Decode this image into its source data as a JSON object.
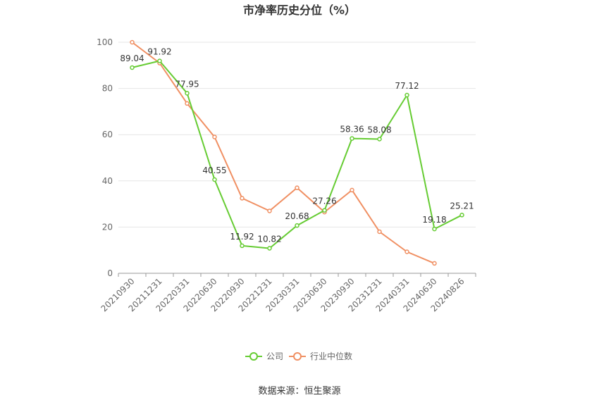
{
  "chart_data": {
    "type": "line",
    "title": "市净率历史分位（%）",
    "categories": [
      "20210930",
      "20211231",
      "20220331",
      "20220630",
      "20220930",
      "20221231",
      "20230331",
      "20230630",
      "20230930",
      "20231231",
      "20240331",
      "20240630",
      "20240826"
    ],
    "series": [
      {
        "name": "公司",
        "color": "#66cc33",
        "values": [
          89.04,
          91.92,
          77.95,
          40.55,
          11.92,
          10.82,
          20.68,
          27.26,
          58.36,
          58.08,
          77.12,
          19.18,
          25.21
        ],
        "labels": [
          "89.04",
          "91.92",
          "77.95",
          "40.55",
          "11.92",
          "10.82",
          "20.68",
          "27.26",
          "58.36",
          "58.08",
          "77.12",
          "19.18",
          "25.21"
        ]
      },
      {
        "name": "行业中位数",
        "color": "#f08f62",
        "values": [
          100,
          91,
          73.5,
          59,
          32.5,
          27,
          37,
          26.5,
          36,
          18,
          9.3,
          4.3,
          null
        ]
      }
    ],
    "yticks": [
      "0",
      "20",
      "40",
      "60",
      "80",
      "100"
    ],
    "ylim": [
      0,
      100
    ],
    "grid": true,
    "legend_position": "bottom-center",
    "source": "数据来源：恒生聚源"
  }
}
